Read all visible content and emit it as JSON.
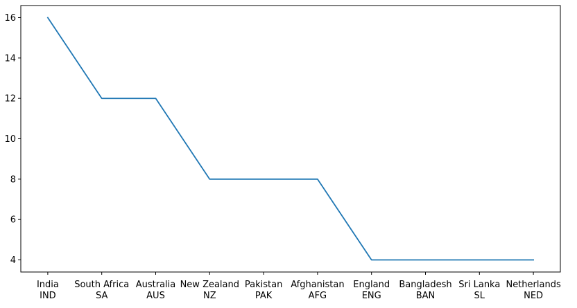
{
  "chart_data": {
    "type": "line",
    "categories": [
      [
        "India",
        "IND"
      ],
      [
        "South Africa",
        "SA"
      ],
      [
        "Australia",
        "AUS"
      ],
      [
        "New Zealand",
        "NZ"
      ],
      [
        "Pakistan",
        "PAK"
      ],
      [
        "Afghanistan",
        "AFG"
      ],
      [
        "England",
        "ENG"
      ],
      [
        "Bangladesh",
        "BAN"
      ],
      [
        "Sri Lanka",
        "SL"
      ],
      [
        "Netherlands",
        "NED"
      ]
    ],
    "series": [
      {
        "values": [
          16,
          12,
          12,
          8,
          8,
          8,
          4,
          4,
          4,
          4
        ],
        "color": "#1f77b4"
      }
    ],
    "ylim": [
      3.4,
      16.6
    ],
    "yticks": [
      4,
      6,
      8,
      10,
      12,
      14,
      16
    ],
    "grid": false,
    "legend": "none"
  }
}
